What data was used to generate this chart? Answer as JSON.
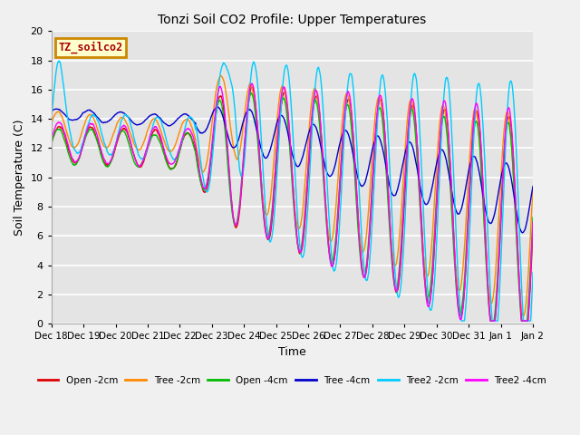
{
  "title": "Tonzi Soil CO2 Profile: Upper Temperatures",
  "xlabel": "Time",
  "ylabel": "Soil Temperature (C)",
  "ylim": [
    0,
    20
  ],
  "subtitle_box": "TZ_soilco2",
  "subtitle_box_color": "#ffffcc",
  "subtitle_box_edge": "#cc8800",
  "subtitle_text_color": "#aa0000",
  "legend_entries": [
    "Open -2cm",
    "Tree -2cm",
    "Open -4cm",
    "Tree -4cm",
    "Tree2 -2cm",
    "Tree2 -4cm"
  ],
  "legend_colors": [
    "#dd0000",
    "#ff8800",
    "#00bb00",
    "#0000cc",
    "#00ccff",
    "#ff00ff"
  ],
  "x_tick_labels": [
    "Dec 18",
    "Dec 19",
    "Dec 20",
    "Dec 21",
    "Dec 22",
    "Dec 23",
    "Dec 24",
    "Dec 25",
    "Dec 26",
    "Dec 27",
    "Dec 28",
    "Dec 29",
    "Dec 30",
    "Dec 31",
    "Jan 1",
    "Jan 2"
  ],
  "num_ticks": 16
}
